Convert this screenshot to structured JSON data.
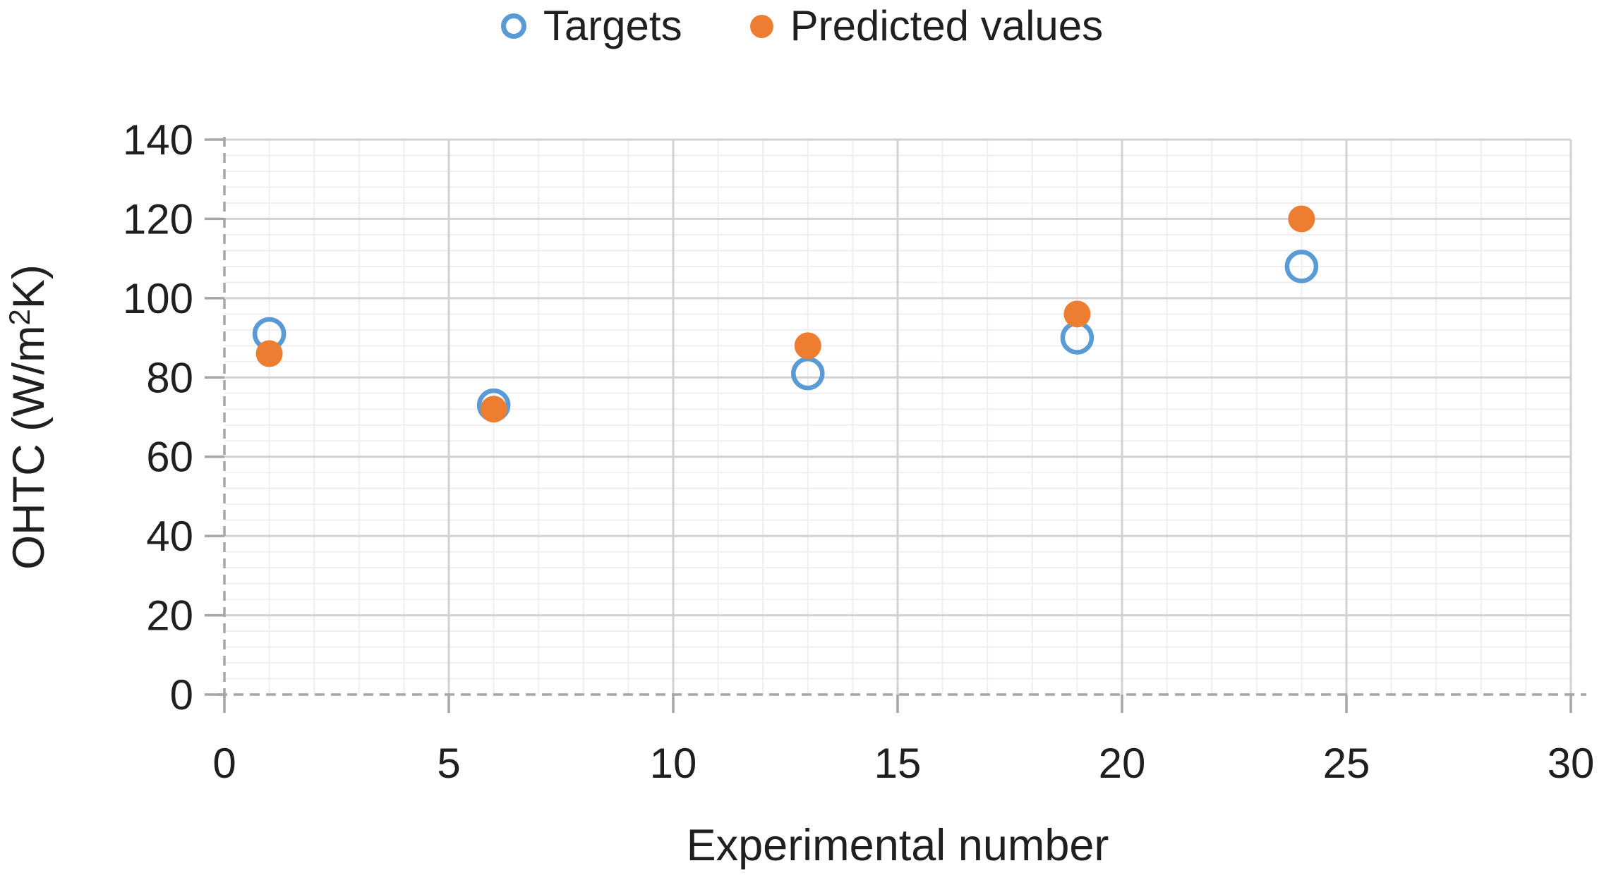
{
  "page": {
    "background": "#FFFFFF"
  },
  "chart_data": {
    "type": "scatter",
    "title": "",
    "xlabel": "Experimental number",
    "ylabel": "OHTC (W/m²K)",
    "xlim": [
      0,
      30
    ],
    "ylim": [
      0,
      140
    ],
    "x_ticks": [
      0,
      5,
      10,
      15,
      20,
      25,
      30
    ],
    "y_ticks": [
      0,
      20,
      40,
      60,
      80,
      100,
      120,
      140
    ],
    "x_minor_step": 1,
    "y_minor_step": 4,
    "grid": true,
    "legend_position": "top-center",
    "x": [
      1,
      6,
      13,
      19,
      24
    ],
    "series": [
      {
        "name": "Targets",
        "marker": "open-circle",
        "color": "#5B9BD5",
        "values": [
          91,
          73,
          81,
          90,
          108
        ]
      },
      {
        "name": "Predicted values",
        "marker": "filled-circle",
        "color": "#ED7D31",
        "values": [
          86,
          72,
          88,
          96,
          120
        ]
      }
    ],
    "colors": {
      "major_grid": "#D2D2D2",
      "minor_grid": "#EFEFEF",
      "axis": "#A6A6A6",
      "text": "#1F1F1F"
    }
  }
}
